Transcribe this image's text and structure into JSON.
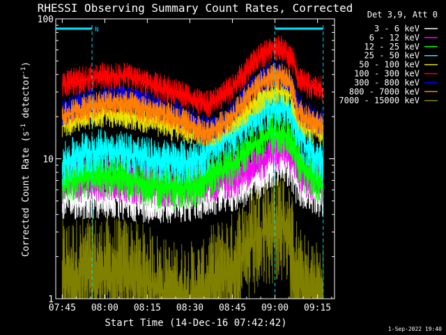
{
  "chart_data": {
    "type": "line",
    "title": "RHESSI Observing Summary Count Rates, Corrected",
    "xlabel": "Start Time (14-Dec-16 07:42:42)",
    "ylabel_main": "Corrected Count Rate (s",
    "ylabel_sup1": "-1",
    "ylabel_mid": " detector",
    "ylabel_sup2": "-1",
    "ylabel_end": ")",
    "yscale": "log",
    "ylim": [
      1,
      100
    ],
    "xlim": [
      "07:42:42",
      "09:21:00"
    ],
    "xticks": [
      "07:45",
      "08:00",
      "08:15",
      "08:30",
      "08:45",
      "09:00",
      "09:15"
    ],
    "yticks": [
      "1",
      "10",
      "100"
    ],
    "legend_header": "Det 3,9, Att 0",
    "legend_placement": "top-right outside",
    "x_time_minutes": [
      2.3,
      10,
      17.3,
      25,
      32,
      40,
      47.3,
      52,
      55,
      62.3,
      67.3,
      72.3,
      77.3,
      80,
      82.3,
      84,
      85.3,
      88,
      92.3,
      94.4
    ],
    "series": [
      {
        "name": "3 - 6 keV",
        "color": "#ffffff",
        "values": [
          5.2,
          5.3,
          5.3,
          5.2,
          5.0,
          5.0,
          5.1,
          5.3,
          5.6,
          6.0,
          6.5,
          7.5,
          9.0,
          9.5,
          9.0,
          7.5,
          6.5,
          6.0,
          5.5,
          5.5
        ]
      },
      {
        "name": "6 - 12 keV",
        "color": "#ff00ff",
        "values": [
          6.8,
          7.0,
          7.1,
          6.9,
          6.6,
          6.5,
          6.6,
          6.8,
          7.0,
          7.5,
          8.5,
          10.0,
          11.5,
          11.8,
          11.5,
          10.0,
          8.5,
          7.5,
          6.8,
          6.6
        ]
      },
      {
        "name": "12 - 25 keV",
        "color": "#00ff00",
        "values": [
          6.8,
          7.3,
          7.5,
          7.2,
          6.5,
          6.2,
          6.3,
          6.8,
          7.5,
          9.0,
          11.0,
          13.5,
          15.5,
          15.0,
          14.0,
          12.0,
          9.5,
          8.0,
          7.0,
          6.5
        ]
      },
      {
        "name": "25 - 50 keV",
        "color": "#00ffff",
        "values": [
          9.0,
          11.0,
          11.5,
          11.0,
          10.0,
          9.5,
          9.5,
          10.5,
          12.0,
          14.5,
          18.5,
          22.0,
          24.0,
          23.5,
          22.5,
          19.5,
          15.5,
          12.5,
          10.0,
          9.5
        ]
      },
      {
        "name": "50 - 100 keV",
        "color": "#e6e600",
        "values": [
          17.0,
          20.0,
          21.0,
          20.5,
          19.0,
          17.0,
          16.0,
          15.0,
          15.0,
          18.0,
          22.0,
          27.0,
          30.0,
          30.0,
          28.5,
          25.0,
          19.5,
          17.0,
          15.5,
          15.0
        ]
      },
      {
        "name": "100 - 300 keV",
        "color": "#ff0000",
        "values": [
          34.0,
          37.0,
          39.0,
          39.0,
          35.0,
          31.0,
          27.5,
          24.5,
          24.5,
          32.0,
          43.0,
          54.0,
          63.0,
          60.0,
          55.0,
          47.0,
          38.0,
          34.5,
          31.5,
          31.0
        ]
      },
      {
        "name": "300 - 800 keV",
        "color": "#0000ff",
        "values": [
          21.0,
          25.0,
          27.0,
          27.0,
          25.0,
          22.0,
          19.0,
          16.5,
          16.0,
          21.0,
          29.0,
          36.5,
          41.0,
          40.0,
          36.0,
          30.0,
          24.0,
          21.0,
          19.0,
          18.5
        ]
      },
      {
        "name": "800 - 7000 keV",
        "color": "#ff8000",
        "values": [
          20.0,
          23.0,
          25.0,
          24.5,
          22.5,
          20.0,
          17.5,
          15.5,
          15.5,
          20.0,
          27.0,
          34.0,
          39.0,
          38.0,
          35.0,
          28.0,
          22.0,
          19.5,
          17.5,
          17.0
        ]
      },
      {
        "name": "7000 - 15000 keV",
        "color": "#808000",
        "values": [
          1.4,
          1.5,
          1.5,
          1.5,
          1.3,
          1.0,
          1.0,
          1.0,
          1.3,
          1.6,
          2.2,
          2.9,
          3.4,
          3.3,
          2.6,
          1.8,
          1.3,
          1.1,
          1.0,
          1.0
        ]
      }
    ],
    "intervals": [
      {
        "label": "N",
        "start_minutes": 0,
        "end_minutes": 12.8,
        "level": "top"
      },
      {
        "label": "",
        "start_minutes": 77.3,
        "end_minutes": 94.3,
        "level": "top"
      }
    ],
    "interval_color": "#00e5ff",
    "footer_date": "1-Sep-2022 19:40"
  }
}
